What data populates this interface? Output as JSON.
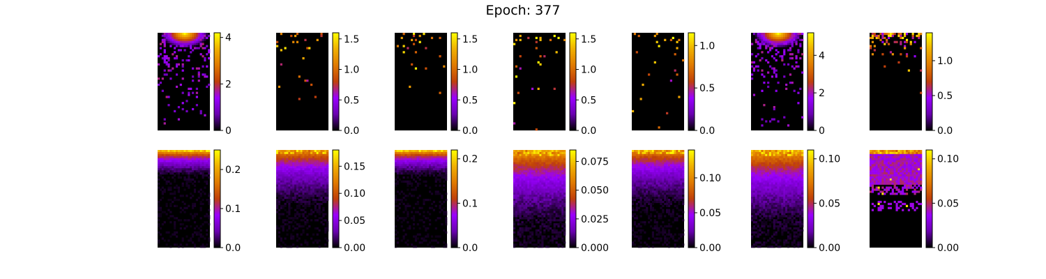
{
  "figure": {
    "title": "Epoch: 377"
  },
  "colormap": {
    "name": "gnuplot",
    "stops": [
      "#000000",
      "#6a00b0",
      "#9a00ff",
      "#c0400a",
      "#e07a00",
      "#f0b000",
      "#ffff00"
    ]
  },
  "chart_data": [
    {
      "type": "heatmap",
      "row": 1,
      "col": 1,
      "vmin": 0,
      "vmax": 4.2,
      "ticks": [
        "0",
        "2",
        "4"
      ],
      "tick_values": [
        0,
        2,
        4
      ],
      "pattern": "top-hotspot-sparse"
    },
    {
      "type": "heatmap",
      "row": 1,
      "col": 2,
      "vmin": 0,
      "vmax": 1.6,
      "ticks": [
        "0.0",
        "0.5",
        "1.0",
        "1.5"
      ],
      "tick_values": [
        0,
        0.5,
        1.0,
        1.5
      ],
      "pattern": "sparse"
    },
    {
      "type": "heatmap",
      "row": 1,
      "col": 3,
      "vmin": 0,
      "vmax": 1.6,
      "ticks": [
        "0.0",
        "0.5",
        "1.0",
        "1.5"
      ],
      "tick_values": [
        0,
        0.5,
        1.0,
        1.5
      ],
      "pattern": "sparse"
    },
    {
      "type": "heatmap",
      "row": 1,
      "col": 4,
      "vmin": 0,
      "vmax": 1.6,
      "ticks": [
        "0.0",
        "0.5",
        "1.0",
        "1.5"
      ],
      "tick_values": [
        0,
        0.5,
        1.0,
        1.5
      ],
      "pattern": "sparse"
    },
    {
      "type": "heatmap",
      "row": 1,
      "col": 5,
      "vmin": 0,
      "vmax": 1.15,
      "ticks": [
        "0.0",
        "0.5",
        "1.0"
      ],
      "tick_values": [
        0,
        0.5,
        1.0
      ],
      "pattern": "sparse"
    },
    {
      "type": "heatmap",
      "row": 1,
      "col": 6,
      "vmin": 0,
      "vmax": 5.2,
      "ticks": [
        "0",
        "2",
        "4"
      ],
      "tick_values": [
        0,
        2,
        4
      ],
      "pattern": "top-hotspot-sparse"
    },
    {
      "type": "heatmap",
      "row": 1,
      "col": 7,
      "vmin": 0,
      "vmax": 1.4,
      "ticks": [
        "0.0",
        "0.5",
        "1.0"
      ],
      "tick_values": [
        0,
        0.5,
        1.0
      ],
      "pattern": "top-band-sparse"
    },
    {
      "type": "heatmap",
      "row": 2,
      "col": 1,
      "vmin": 0,
      "vmax": 0.25,
      "ticks": [
        "0.0",
        "0.1",
        "0.2"
      ],
      "tick_values": [
        0,
        0.1,
        0.2
      ],
      "pattern": "gradient-short"
    },
    {
      "type": "heatmap",
      "row": 2,
      "col": 2,
      "vmin": 0,
      "vmax": 0.18,
      "ticks": [
        "0.00",
        "0.05",
        "0.10",
        "0.15"
      ],
      "tick_values": [
        0,
        0.05,
        0.1,
        0.15
      ],
      "pattern": "gradient-medium"
    },
    {
      "type": "heatmap",
      "row": 2,
      "col": 3,
      "vmin": 0,
      "vmax": 0.22,
      "ticks": [
        "0.0",
        "0.1",
        "0.2"
      ],
      "tick_values": [
        0,
        0.1,
        0.2
      ],
      "pattern": "gradient-short"
    },
    {
      "type": "heatmap",
      "row": 2,
      "col": 4,
      "vmin": 0,
      "vmax": 0.085,
      "ticks": [
        "0.000",
        "0.025",
        "0.050",
        "0.075"
      ],
      "tick_values": [
        0,
        0.025,
        0.05,
        0.075
      ],
      "pattern": "gradient-long"
    },
    {
      "type": "heatmap",
      "row": 2,
      "col": 5,
      "vmin": 0,
      "vmax": 0.14,
      "ticks": [
        "0.00",
        "0.05",
        "0.10"
      ],
      "tick_values": [
        0,
        0.05,
        0.1
      ],
      "pattern": "gradient-medium"
    },
    {
      "type": "heatmap",
      "row": 2,
      "col": 6,
      "vmin": 0,
      "vmax": 0.11,
      "ticks": [
        "0.00",
        "0.05",
        "0.10"
      ],
      "tick_values": [
        0,
        0.05,
        0.1
      ],
      "pattern": "gradient-long"
    },
    {
      "type": "heatmap",
      "row": 2,
      "col": 7,
      "vmin": 0,
      "vmax": 0.11,
      "ticks": [
        "0.00",
        "0.05",
        "0.10"
      ],
      "tick_values": [
        0,
        0.05,
        0.1
      ],
      "pattern": "patchy"
    }
  ]
}
